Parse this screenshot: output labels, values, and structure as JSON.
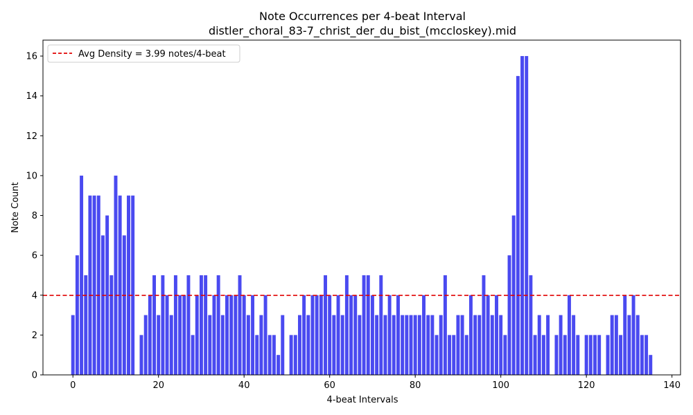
{
  "chart_data": {
    "type": "bar",
    "title": "Note Occurrences per 4-beat Interval",
    "subtitle": "distler_choral_83-7_christ_der_du_bist_(mccloskey).mid",
    "xlabel": "4-beat Intervals",
    "ylabel": "Note Count",
    "xlim": [
      -7,
      142
    ],
    "ylim": [
      0,
      16.8
    ],
    "xticks": [
      0,
      20,
      40,
      60,
      80,
      100,
      120,
      140
    ],
    "yticks": [
      0,
      2,
      4,
      6,
      8,
      10,
      12,
      14,
      16
    ],
    "bar_color": "#4a4af0",
    "values": [
      3,
      6,
      10,
      5,
      9,
      9,
      9,
      7,
      8,
      5,
      10,
      9,
      7,
      9,
      9,
      0,
      2,
      3,
      4,
      5,
      3,
      5,
      4,
      3,
      5,
      4,
      4,
      5,
      2,
      4,
      5,
      5,
      3,
      4,
      5,
      3,
      4,
      4,
      4,
      5,
      4,
      3,
      4,
      2,
      3,
      4,
      2,
      2,
      1,
      3,
      0,
      2,
      2,
      3,
      4,
      3,
      4,
      4,
      4,
      5,
      4,
      3,
      4,
      3,
      5,
      4,
      4,
      3,
      5,
      5,
      4,
      3,
      5,
      3,
      4,
      3,
      4,
      3,
      3,
      3,
      3,
      3,
      4,
      3,
      3,
      2,
      3,
      5,
      2,
      2,
      3,
      3,
      2,
      4,
      3,
      3,
      5,
      4,
      3,
      4,
      3,
      2,
      6,
      8,
      15,
      16,
      16,
      5,
      2,
      3,
      2,
      3,
      0,
      2,
      3,
      2,
      4,
      3,
      2,
      0,
      2,
      2,
      2,
      2,
      0,
      2,
      3,
      3,
      2,
      4,
      3,
      4,
      3,
      2,
      2,
      1
    ],
    "average": {
      "value": 3.99,
      "color": "#e00000",
      "label": "Avg Density = 3.99 notes/4-beat"
    },
    "legend_position": "top-left",
    "grid": false
  }
}
